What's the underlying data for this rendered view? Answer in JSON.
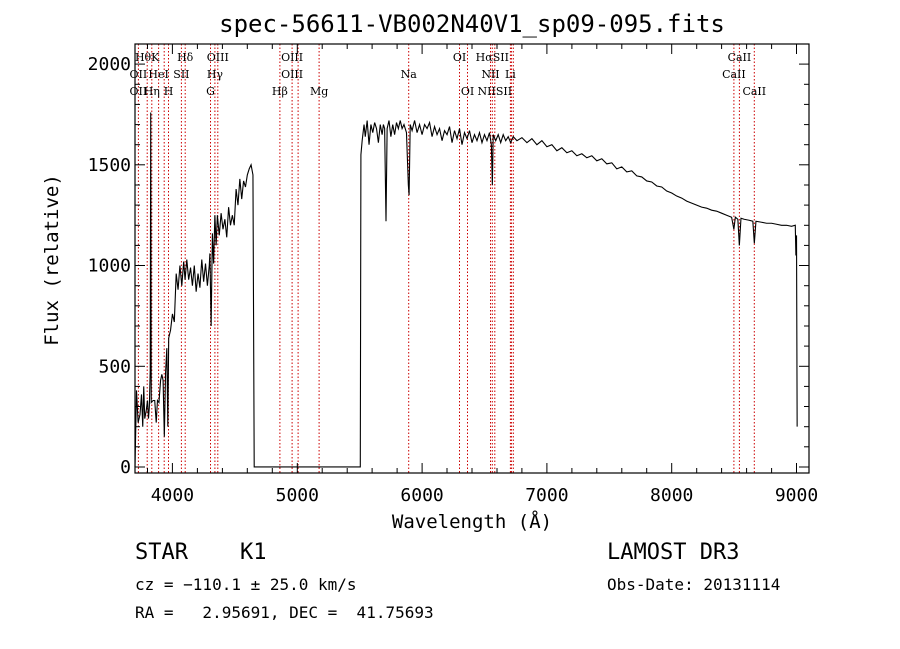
{
  "chart_data": {
    "type": "line",
    "title": "spec-56611-VB002N40V1_sp09-095.fits",
    "xlabel": "Wavelength (Å)",
    "ylabel": "Flux (relative)",
    "xlim": [
      3700,
      9100
    ],
    "ylim": [
      -30,
      2100
    ],
    "xticks": [
      4000,
      5000,
      6000,
      7000,
      8000,
      9000
    ],
    "xtick_labels": [
      "4000",
      "5000",
      "6000",
      "7000",
      "8000",
      "9000"
    ],
    "yticks": [
      0,
      500,
      1000,
      1500,
      2000
    ],
    "ytick_labels": [
      "0",
      "500",
      "1000",
      "1500",
      "2000"
    ],
    "spectrum": [
      [
        3700,
        0
      ],
      [
        3712,
        380
      ],
      [
        3725,
        220
      ],
      [
        3740,
        260
      ],
      [
        3752,
        360
      ],
      [
        3762,
        200
      ],
      [
        3770,
        400
      ],
      [
        3778,
        240
      ],
      [
        3790,
        280
      ],
      [
        3800,
        330
      ],
      [
        3808,
        240
      ],
      [
        3815,
        300
      ],
      [
        3822,
        480
      ],
      [
        3826,
        1760
      ],
      [
        3830,
        320
      ],
      [
        3845,
        330
      ],
      [
        3858,
        330
      ],
      [
        3870,
        220
      ],
      [
        3880,
        330
      ],
      [
        3892,
        320
      ],
      [
        3905,
        430
      ],
      [
        3915,
        460
      ],
      [
        3925,
        430
      ],
      [
        3935,
        150
      ],
      [
        3945,
        470
      ],
      [
        3955,
        590
      ],
      [
        3963,
        200
      ],
      [
        3970,
        640
      ],
      [
        3985,
        680
      ],
      [
        4000,
        760
      ],
      [
        4015,
        720
      ],
      [
        4030,
        960
      ],
      [
        4045,
        880
      ],
      [
        4060,
        1000
      ],
      [
        4075,
        900
      ],
      [
        4090,
        1020
      ],
      [
        4101,
        930
      ],
      [
        4115,
        1030
      ],
      [
        4130,
        930
      ],
      [
        4145,
        990
      ],
      [
        4160,
        900
      ],
      [
        4175,
        1000
      ],
      [
        4190,
        870
      ],
      [
        4205,
        960
      ],
      [
        4220,
        890
      ],
      [
        4235,
        1030
      ],
      [
        4250,
        920
      ],
      [
        4265,
        1010
      ],
      [
        4280,
        900
      ],
      [
        4295,
        1000
      ],
      [
        4300,
        1060
      ],
      [
        4310,
        700
      ],
      [
        4320,
        1160
      ],
      [
        4330,
        1010
      ],
      [
        4340,
        1250
      ],
      [
        4350,
        1100
      ],
      [
        4360,
        1250
      ],
      [
        4375,
        1150
      ],
      [
        4390,
        1260
      ],
      [
        4405,
        1180
      ],
      [
        4420,
        1230
      ],
      [
        4435,
        1140
      ],
      [
        4450,
        1290
      ],
      [
        4465,
        1200
      ],
      [
        4480,
        1250
      ],
      [
        4495,
        1200
      ],
      [
        4510,
        1380
      ],
      [
        4525,
        1300
      ],
      [
        4540,
        1430
      ],
      [
        4555,
        1330
      ],
      [
        4570,
        1420
      ],
      [
        4585,
        1390
      ],
      [
        4600,
        1450
      ],
      [
        4615,
        1480
      ],
      [
        4630,
        1500
      ],
      [
        4645,
        1450
      ],
      [
        4655,
        0
      ],
      [
        5500,
        0
      ],
      [
        5505,
        0
      ],
      [
        5510,
        1550
      ],
      [
        5520,
        1620
      ],
      [
        5535,
        1700
      ],
      [
        5545,
        1640
      ],
      [
        5560,
        1720
      ],
      [
        5575,
        1600
      ],
      [
        5590,
        1700
      ],
      [
        5605,
        1660
      ],
      [
        5620,
        1710
      ],
      [
        5635,
        1680
      ],
      [
        5650,
        1610
      ],
      [
        5665,
        1700
      ],
      [
        5680,
        1650
      ],
      [
        5690,
        1700
      ],
      [
        5700,
        1680
      ],
      [
        5711,
        1220
      ],
      [
        5720,
        1680
      ],
      [
        5735,
        1720
      ],
      [
        5750,
        1640
      ],
      [
        5765,
        1700
      ],
      [
        5780,
        1650
      ],
      [
        5795,
        1710
      ],
      [
        5810,
        1680
      ],
      [
        5825,
        1720
      ],
      [
        5840,
        1680
      ],
      [
        5855,
        1700
      ],
      [
        5875,
        1660
      ],
      [
        5890,
        1400
      ],
      [
        5896,
        1350
      ],
      [
        5905,
        1700
      ],
      [
        5920,
        1670
      ],
      [
        5940,
        1720
      ],
      [
        5960,
        1660
      ],
      [
        5980,
        1700
      ],
      [
        6000,
        1650
      ],
      [
        6020,
        1700
      ],
      [
        6040,
        1680
      ],
      [
        6060,
        1710
      ],
      [
        6080,
        1640
      ],
      [
        6100,
        1690
      ],
      [
        6120,
        1650
      ],
      [
        6140,
        1680
      ],
      [
        6160,
        1620
      ],
      [
        6180,
        1670
      ],
      [
        6200,
        1650
      ],
      [
        6220,
        1690
      ],
      [
        6240,
        1610
      ],
      [
        6260,
        1670
      ],
      [
        6280,
        1630
      ],
      [
        6300,
        1680
      ],
      [
        6320,
        1600
      ],
      [
        6340,
        1660
      ],
      [
        6360,
        1630
      ],
      [
        6380,
        1670
      ],
      [
        6400,
        1610
      ],
      [
        6420,
        1650
      ],
      [
        6440,
        1620
      ],
      [
        6460,
        1660
      ],
      [
        6480,
        1610
      ],
      [
        6500,
        1650
      ],
      [
        6520,
        1620
      ],
      [
        6540,
        1660
      ],
      [
        6555,
        1600
      ],
      [
        6563,
        1400
      ],
      [
        6570,
        1650
      ],
      [
        6590,
        1620
      ],
      [
        6610,
        1650
      ],
      [
        6630,
        1610
      ],
      [
        6650,
        1650
      ],
      [
        6670,
        1620
      ],
      [
        6690,
        1640
      ],
      [
        6710,
        1610
      ],
      [
        6730,
        1640
      ],
      [
        6760,
        1620
      ],
      [
        6800,
        1635
      ],
      [
        6840,
        1610
      ],
      [
        6880,
        1630
      ],
      [
        6920,
        1600
      ],
      [
        6960,
        1620
      ],
      [
        7000,
        1590
      ],
      [
        7040,
        1600
      ],
      [
        7080,
        1570
      ],
      [
        7120,
        1585
      ],
      [
        7160,
        1560
      ],
      [
        7200,
        1570
      ],
      [
        7240,
        1545
      ],
      [
        7280,
        1555
      ],
      [
        7320,
        1535
      ],
      [
        7360,
        1545
      ],
      [
        7400,
        1520
      ],
      [
        7440,
        1530
      ],
      [
        7480,
        1505
      ],
      [
        7520,
        1510
      ],
      [
        7560,
        1480
      ],
      [
        7600,
        1490
      ],
      [
        7640,
        1465
      ],
      [
        7680,
        1470
      ],
      [
        7720,
        1445
      ],
      [
        7760,
        1440
      ],
      [
        7800,
        1420
      ],
      [
        7840,
        1415
      ],
      [
        7880,
        1395
      ],
      [
        7920,
        1390
      ],
      [
        7960,
        1370
      ],
      [
        8000,
        1360
      ],
      [
        8040,
        1345
      ],
      [
        8080,
        1335
      ],
      [
        8120,
        1320
      ],
      [
        8160,
        1310
      ],
      [
        8200,
        1300
      ],
      [
        8240,
        1290
      ],
      [
        8280,
        1285
      ],
      [
        8320,
        1275
      ],
      [
        8360,
        1270
      ],
      [
        8400,
        1260
      ],
      [
        8440,
        1250
      ],
      [
        8480,
        1240
      ],
      [
        8498,
        1180
      ],
      [
        8510,
        1240
      ],
      [
        8530,
        1230
      ],
      [
        8542,
        1100
      ],
      [
        8555,
        1235
      ],
      [
        8580,
        1230
      ],
      [
        8620,
        1225
      ],
      [
        8650,
        1220
      ],
      [
        8662,
        1110
      ],
      [
        8675,
        1220
      ],
      [
        8720,
        1215
      ],
      [
        8760,
        1210
      ],
      [
        8800,
        1210
      ],
      [
        8840,
        1205
      ],
      [
        8880,
        1200
      ],
      [
        8920,
        1200
      ],
      [
        8960,
        1195
      ],
      [
        8990,
        1200
      ],
      [
        8995,
        1050
      ],
      [
        9000,
        1150
      ],
      [
        9005,
        200
      ]
    ],
    "lines": [
      {
        "label": "HθK",
        "wl": 3798,
        "row": 0
      },
      {
        "label": "HeI",
        "wl": 3889,
        "row": 1
      },
      {
        "label": "Hδ",
        "wl": 4102,
        "row": 0
      },
      {
        "label": "SII",
        "wl": 4072,
        "row": 1
      },
      {
        "label": "OIII",
        "wl": 4363,
        "row": 0
      },
      {
        "label": "Hγ",
        "wl": 4340,
        "row": 1
      },
      {
        "label": "G",
        "wl": 4305,
        "row": 2
      },
      {
        "label": "OIII",
        "wl": 4959,
        "row": 0
      },
      {
        "label": "OIII",
        "wl": 4959,
        "row": 1
      },
      {
        "label": "Hβ",
        "wl": 4861,
        "row": 2
      },
      {
        "label": "Mg",
        "wl": 5175,
        "row": 2
      },
      {
        "label": "OII",
        "wl": 3727,
        "row": 1
      },
      {
        "label": "OII",
        "wl": 3727,
        "row": 2
      },
      {
        "label": "Hη",
        "wl": 3835,
        "row": 2
      },
      {
        "label": "H",
        "wl": 3968,
        "row": 2
      },
      {
        "label": "Na",
        "wl": 5893,
        "row": 1
      },
      {
        "label": "OI",
        "wl": 6300,
        "row": 0
      },
      {
        "label": "OI",
        "wl": 6364,
        "row": 2
      },
      {
        "label": "HαSII",
        "wl": 6563,
        "row": 0
      },
      {
        "label": "NII",
        "wl": 6548,
        "row": 1
      },
      {
        "label": "Li",
        "wl": 6708,
        "row": 1
      },
      {
        "label": "NIISII",
        "wl": 6583,
        "row": 2
      },
      {
        "label": "CaII",
        "wl": 8542,
        "row": 0
      },
      {
        "label": "CaII",
        "wl": 8498,
        "row": 1
      },
      {
        "label": "CaII",
        "wl": 8662,
        "row": 2
      }
    ],
    "marker_wavelengths": [
      3727,
      3798,
      3835,
      3889,
      3934,
      3968,
      4072,
      4102,
      4305,
      4340,
      4363,
      4861,
      4959,
      5007,
      5175,
      5893,
      6300,
      6364,
      6548,
      6563,
      6583,
      6708,
      6716,
      6731,
      8498,
      8542,
      8662
    ]
  },
  "info": {
    "object_class": "STAR",
    "subclass": "K1",
    "survey": "LAMOST DR3",
    "cz": "cz = −110.1 ± 25.0 km/s",
    "obs_date": "Obs-Date: 20131114",
    "coords": "RA =   2.95691, DEC =  41.75693"
  },
  "colors": {
    "spectrum": "#000000",
    "markers": "#cc0000",
    "axes": "#000000"
  }
}
